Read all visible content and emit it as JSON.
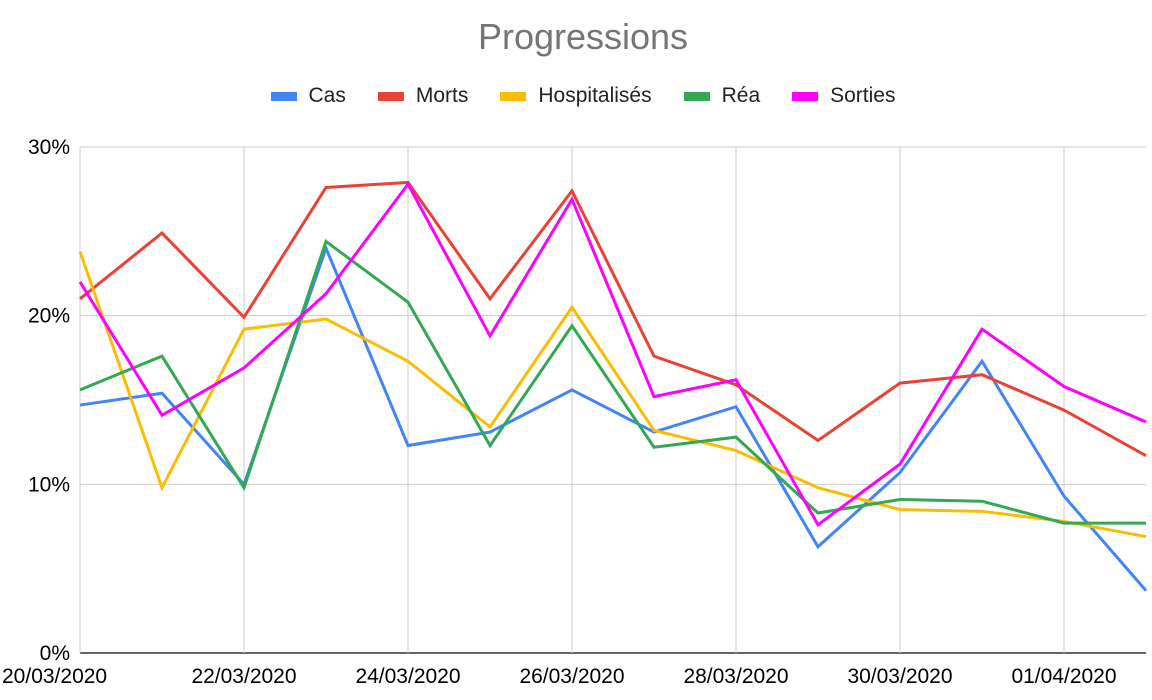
{
  "chart_data": {
    "type": "line",
    "title": "Progressions",
    "xlabel": "",
    "ylabel": "",
    "ylim": [
      0,
      30
    ],
    "y_ticks": [
      "0%",
      "10%",
      "20%",
      "30%"
    ],
    "categories": [
      "20/03/2020",
      "21/03/2020",
      "22/03/2020",
      "23/03/2020",
      "24/03/2020",
      "25/03/2020",
      "26/03/2020",
      "27/03/2020",
      "28/03/2020",
      "29/03/2020",
      "30/03/2020",
      "31/03/2020",
      "01/04/2020",
      "02/04/2020"
    ],
    "x_tick_labels": [
      "20/03/2020",
      "22/03/2020",
      "24/03/2020",
      "26/03/2020",
      "28/03/2020",
      "30/03/2020",
      "01/04/2020"
    ],
    "grid": true,
    "legend_position": "top",
    "series": [
      {
        "name": "Cas",
        "color": "#4285F4",
        "values": [
          14.7,
          15.4,
          10.0,
          24.0,
          12.3,
          13.1,
          15.6,
          13.1,
          14.6,
          6.3,
          10.7,
          17.3,
          9.3,
          3.7
        ]
      },
      {
        "name": "Morts",
        "color": "#EA4335",
        "values": [
          21.0,
          24.9,
          19.9,
          27.6,
          27.9,
          21.0,
          27.4,
          17.6,
          15.9,
          12.6,
          16.0,
          16.5,
          14.4,
          11.7
        ]
      },
      {
        "name": "Hospitalisés",
        "color": "#FBBC04",
        "values": [
          23.8,
          9.8,
          19.2,
          19.8,
          17.3,
          13.4,
          20.5,
          13.2,
          12.0,
          9.8,
          8.5,
          8.4,
          7.8,
          6.9
        ]
      },
      {
        "name": "Réa",
        "color": "#34A853",
        "values": [
          15.6,
          17.6,
          9.8,
          24.4,
          20.8,
          12.3,
          19.4,
          12.2,
          12.8,
          8.3,
          9.1,
          9.0,
          7.7,
          7.7
        ]
      },
      {
        "name": "Sorties",
        "color": "#FF00FF",
        "values": [
          22.0,
          14.1,
          16.9,
          21.3,
          27.8,
          18.8,
          26.9,
          15.2,
          16.2,
          7.6,
          11.2,
          19.2,
          15.8,
          13.7
        ]
      }
    ]
  }
}
